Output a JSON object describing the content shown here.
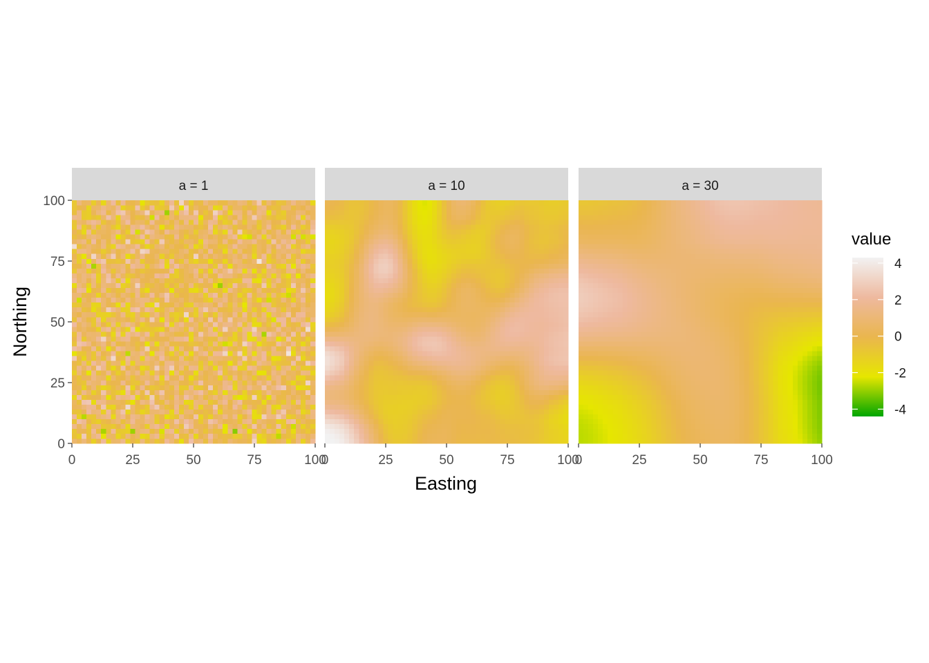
{
  "chart_data": {
    "type": "heatmap",
    "facet_variable": "a",
    "panels": [
      {
        "label": "a = 1",
        "range": 1,
        "seed": 11
      },
      {
        "label": "a = 10",
        "range": 10,
        "seed": 23
      },
      {
        "label": "a = 30",
        "range": 30,
        "seed": 37
      }
    ],
    "xlabel": "Easting",
    "ylabel": "Northing",
    "xlim": [
      0,
      100
    ],
    "ylim": [
      0,
      100
    ],
    "x_ticks": [
      "0",
      "25",
      "50",
      "75",
      "100"
    ],
    "y_ticks": [
      "0",
      "25",
      "50",
      "75",
      "100"
    ],
    "grid": false,
    "legend": {
      "title": "value",
      "position": "right",
      "limits": [
        -4.4,
        4.3
      ],
      "breaks": [
        4,
        2,
        0,
        -2,
        -4
      ],
      "break_labels": [
        "4",
        "2",
        "0",
        "-2",
        "-4"
      ],
      "colors": [
        "#00A600",
        "#E6E600",
        "#EAB64E",
        "#EEB99F",
        "#F2F2F2"
      ]
    }
  }
}
